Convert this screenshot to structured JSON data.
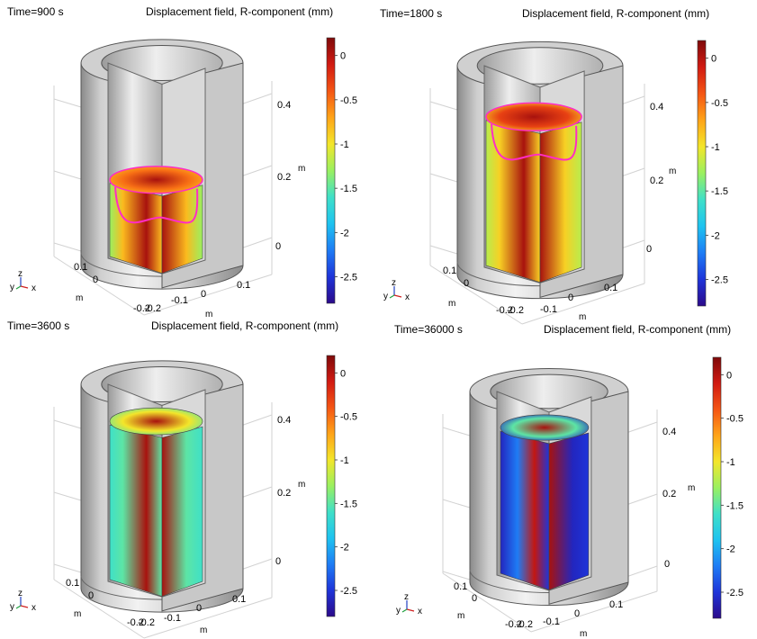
{
  "colormap": [
    "#2b0a8a",
    "#1e34d9",
    "#1e7cf5",
    "#1ec3f0",
    "#3fe0c8",
    "#9af060",
    "#f3e62a",
    "#ffa418",
    "#f45514",
    "#d11a12",
    "#7f0a0a"
  ],
  "colors": {
    "metal_light": "#e6e6e6",
    "metal_mid": "#b3b3b3",
    "metal_dark": "#7d7d7d",
    "contour": "#ff2cc5",
    "grid": "#d2d2d2"
  },
  "chart_data": [
    {
      "type": "heatmap",
      "time_label": "Time=900 s",
      "title": "Displacement field, R-component (mm)",
      "colorbar": {
        "range": [
          -2.8,
          0.2
        ],
        "ticks": [
          "0",
          "-0.5",
          "-1",
          "-1.5",
          "-2",
          "-2.5"
        ],
        "tick_values": [
          0,
          -0.5,
          -1,
          -1.5,
          -2,
          -2.5
        ]
      },
      "z_axis": {
        "label": "m",
        "ticks": [
          "0.4",
          "0.2",
          "0"
        ]
      },
      "x_axis": {
        "label": "m",
        "ticks": [
          "-0.2",
          "-0.1",
          "0",
          "0.1"
        ]
      },
      "y_axis": {
        "label": "m",
        "ticks": [
          "-0.2",
          "0",
          "0.1"
        ]
      },
      "triad": {
        "z": "z",
        "y": "y",
        "x": "x"
      },
      "fill_level": 0.45,
      "surface_value": -0.5,
      "outer_value": -0.8,
      "inner_value": 0.05,
      "edge_value": -1.3
    },
    {
      "type": "heatmap",
      "time_label": "Time=1800 s",
      "title": "Displacement field, R-component (mm)",
      "colorbar": {
        "range": [
          -2.8,
          0.2
        ],
        "ticks": [
          "0",
          "-0.5",
          "-1",
          "-1.5",
          "-2",
          "-2.5"
        ],
        "tick_values": [
          0,
          -0.5,
          -1,
          -1.5,
          -2,
          -2.5
        ]
      },
      "z_axis": {
        "label": "m",
        "ticks": [
          "0.4",
          "0.2",
          "0"
        ]
      },
      "x_axis": {
        "label": "m",
        "ticks": [
          "-0.2",
          "-0.1",
          "0",
          "0.1"
        ]
      },
      "y_axis": {
        "label": "m",
        "ticks": [
          "-0.2",
          "0",
          "0.1"
        ]
      },
      "triad": {
        "z": "z",
        "y": "y",
        "x": "x"
      },
      "fill_level": 0.85,
      "surface_value": -0.3,
      "outer_value": -0.9,
      "inner_value": 0.05,
      "edge_value": -1.2
    },
    {
      "type": "heatmap",
      "time_label": "Time=3600 s",
      "title": "Displacement field, R-component (mm)",
      "colorbar": {
        "range": [
          -2.8,
          0.2
        ],
        "ticks": [
          "0",
          "-0.5",
          "-1",
          "-1.5",
          "-2",
          "-2.5"
        ],
        "tick_values": [
          0,
          -0.5,
          -1,
          -1.5,
          -2,
          -2.5
        ]
      },
      "z_axis": {
        "label": "m",
        "ticks": [
          "0.4",
          "0.2",
          "0"
        ]
      },
      "x_axis": {
        "label": "m",
        "ticks": [
          "-0.2",
          "-0.1",
          "0",
          "0.1"
        ]
      },
      "y_axis": {
        "label": "m",
        "ticks": [
          "-0.2",
          "0",
          "0.1"
        ]
      },
      "triad": {
        "z": "z",
        "y": "y",
        "x": "x"
      },
      "fill_level": 0.93,
      "surface_value": -1.0,
      "outer_value": -1.5,
      "inner_value": 0.05,
      "edge_value": -1.6
    },
    {
      "type": "heatmap",
      "time_label": "Time=36000 s",
      "title": "Displacement field, R-component (mm)",
      "colorbar": {
        "range": [
          -2.8,
          0.2
        ],
        "ticks": [
          "0",
          "-0.5",
          "-1",
          "-1.5",
          "-2",
          "-2.5"
        ],
        "tick_values": [
          0,
          -0.5,
          -1,
          -1.5,
          -2,
          -2.5
        ]
      },
      "z_axis": {
        "label": "m",
        "ticks": [
          "0.4",
          "0.2",
          "0"
        ]
      },
      "x_axis": {
        "label": "m",
        "ticks": [
          "-0.2",
          "-0.1",
          "0",
          "0.1"
        ]
      },
      "y_axis": {
        "label": "m",
        "ticks": [
          "-0.2",
          "0",
          "0.1"
        ]
      },
      "triad": {
        "z": "z",
        "y": "y",
        "x": "x"
      },
      "fill_level": 0.93,
      "surface_value": -1.5,
      "outer_value": -2.6,
      "inner_value": 0.05,
      "edge_value": -2.5
    }
  ]
}
